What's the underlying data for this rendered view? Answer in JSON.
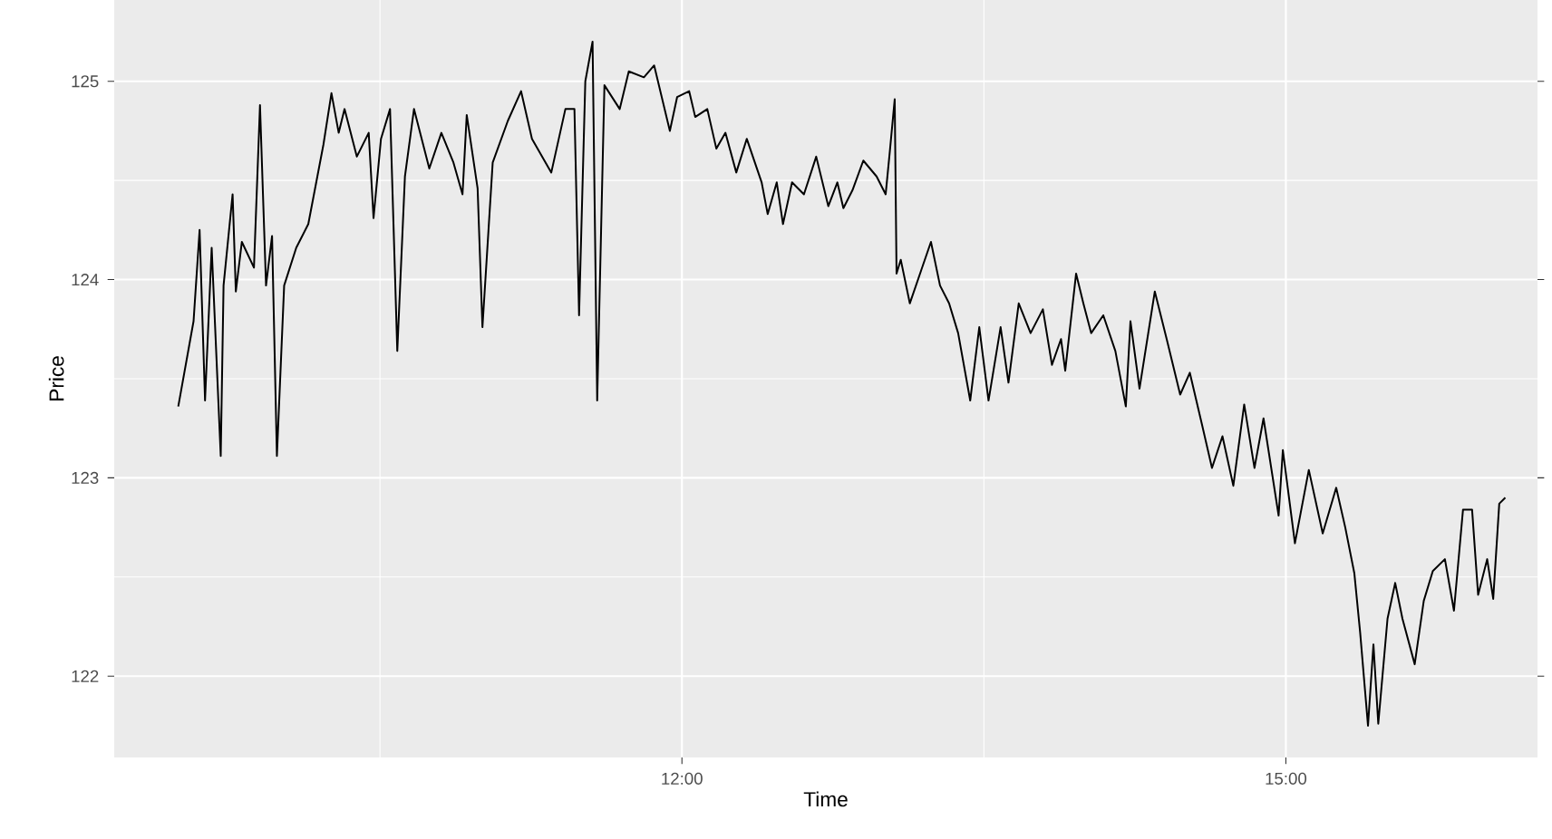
{
  "chart_data": {
    "type": "line",
    "xlabel": "Time",
    "ylabel": "Price",
    "color": "#000000",
    "grid": true,
    "xlim": [
      9.18,
      16.25
    ],
    "ylim": [
      121.59,
      125.41
    ],
    "xticks": [
      {
        "value": 12,
        "label": "12:00"
      },
      {
        "value": 15,
        "label": "15:00"
      }
    ],
    "yticks": [
      122,
      123,
      124,
      125
    ],
    "x": [
      9.498,
      9.574,
      9.604,
      9.631,
      9.664,
      9.709,
      9.723,
      9.768,
      9.784,
      9.814,
      9.874,
      9.904,
      9.934,
      9.964,
      9.988,
      10.024,
      10.084,
      10.144,
      10.189,
      10.219,
      10.259,
      10.295,
      10.324,
      10.385,
      10.444,
      10.468,
      10.505,
      10.55,
      10.586,
      10.624,
      10.669,
      10.745,
      10.805,
      10.865,
      10.91,
      10.931,
      10.985,
      11.009,
      11.06,
      11.135,
      11.201,
      11.255,
      11.351,
      11.421,
      11.466,
      11.489,
      11.52,
      11.556,
      11.579,
      11.615,
      11.691,
      11.736,
      11.811,
      11.862,
      11.94,
      11.976,
      12.036,
      12.066,
      12.126,
      12.171,
      12.216,
      12.27,
      12.322,
      12.396,
      12.426,
      12.471,
      12.502,
      12.547,
      12.606,
      12.667,
      12.727,
      12.772,
      12.802,
      12.847,
      12.901,
      12.967,
      13.012,
      13.033,
      13.057,
      13.066,
      13.087,
      13.132,
      13.237,
      13.282,
      13.327,
      13.372,
      13.432,
      13.477,
      13.523,
      13.583,
      13.622,
      13.673,
      13.732,
      13.793,
      13.838,
      13.883,
      13.904,
      13.958,
      13.994,
      14.033,
      14.093,
      14.153,
      14.205,
      14.228,
      14.273,
      14.349,
      14.408,
      14.475,
      14.523,
      14.583,
      14.633,
      14.685,
      14.739,
      14.793,
      14.844,
      14.889,
      14.964,
      14.985,
      15.045,
      15.114,
      15.183,
      15.25,
      15.295,
      15.34,
      15.369,
      15.408,
      15.435,
      15.459,
      15.505,
      15.543,
      15.579,
      15.64,
      15.685,
      15.73,
      15.79,
      15.835,
      15.88,
      15.925,
      15.955,
      16.0,
      16.03,
      16.06,
      16.09
    ],
    "values": [
      123.36,
      123.79,
      124.25,
      123.39,
      124.16,
      123.11,
      123.97,
      124.43,
      123.94,
      124.19,
      124.06,
      124.88,
      123.97,
      124.22,
      123.11,
      123.97,
      124.16,
      124.28,
      124.52,
      124.68,
      124.94,
      124.74,
      124.86,
      124.62,
      124.74,
      124.31,
      124.71,
      124.86,
      123.64,
      124.52,
      124.86,
      124.56,
      124.74,
      124.59,
      124.43,
      124.83,
      124.46,
      123.76,
      124.59,
      124.8,
      124.95,
      124.71,
      124.54,
      124.86,
      124.86,
      123.82,
      125.0,
      125.2,
      123.39,
      124.98,
      124.86,
      125.05,
      125.02,
      125.08,
      124.75,
      124.92,
      124.95,
      124.82,
      124.86,
      124.66,
      124.74,
      124.54,
      124.71,
      124.49,
      124.33,
      124.49,
      124.28,
      124.49,
      124.43,
      124.62,
      124.37,
      124.49,
      124.36,
      124.45,
      124.6,
      124.52,
      124.43,
      124.65,
      124.91,
      124.03,
      124.1,
      123.88,
      124.19,
      123.97,
      123.88,
      123.73,
      123.39,
      123.76,
      123.39,
      123.76,
      123.48,
      123.88,
      123.73,
      123.85,
      123.57,
      123.7,
      123.54,
      124.03,
      123.88,
      123.73,
      123.82,
      123.64,
      123.36,
      123.79,
      123.45,
      123.94,
      123.7,
      123.42,
      123.53,
      123.27,
      123.05,
      123.21,
      122.96,
      123.37,
      123.05,
      123.3,
      122.81,
      123.14,
      122.67,
      123.04,
      122.72,
      122.95,
      122.75,
      122.52,
      122.22,
      121.75,
      122.16,
      121.76,
      122.29,
      122.47,
      122.29,
      122.06,
      122.38,
      122.53,
      122.59,
      122.33,
      122.84,
      122.84,
      122.41,
      122.59,
      122.39,
      122.87,
      122.9
    ]
  }
}
